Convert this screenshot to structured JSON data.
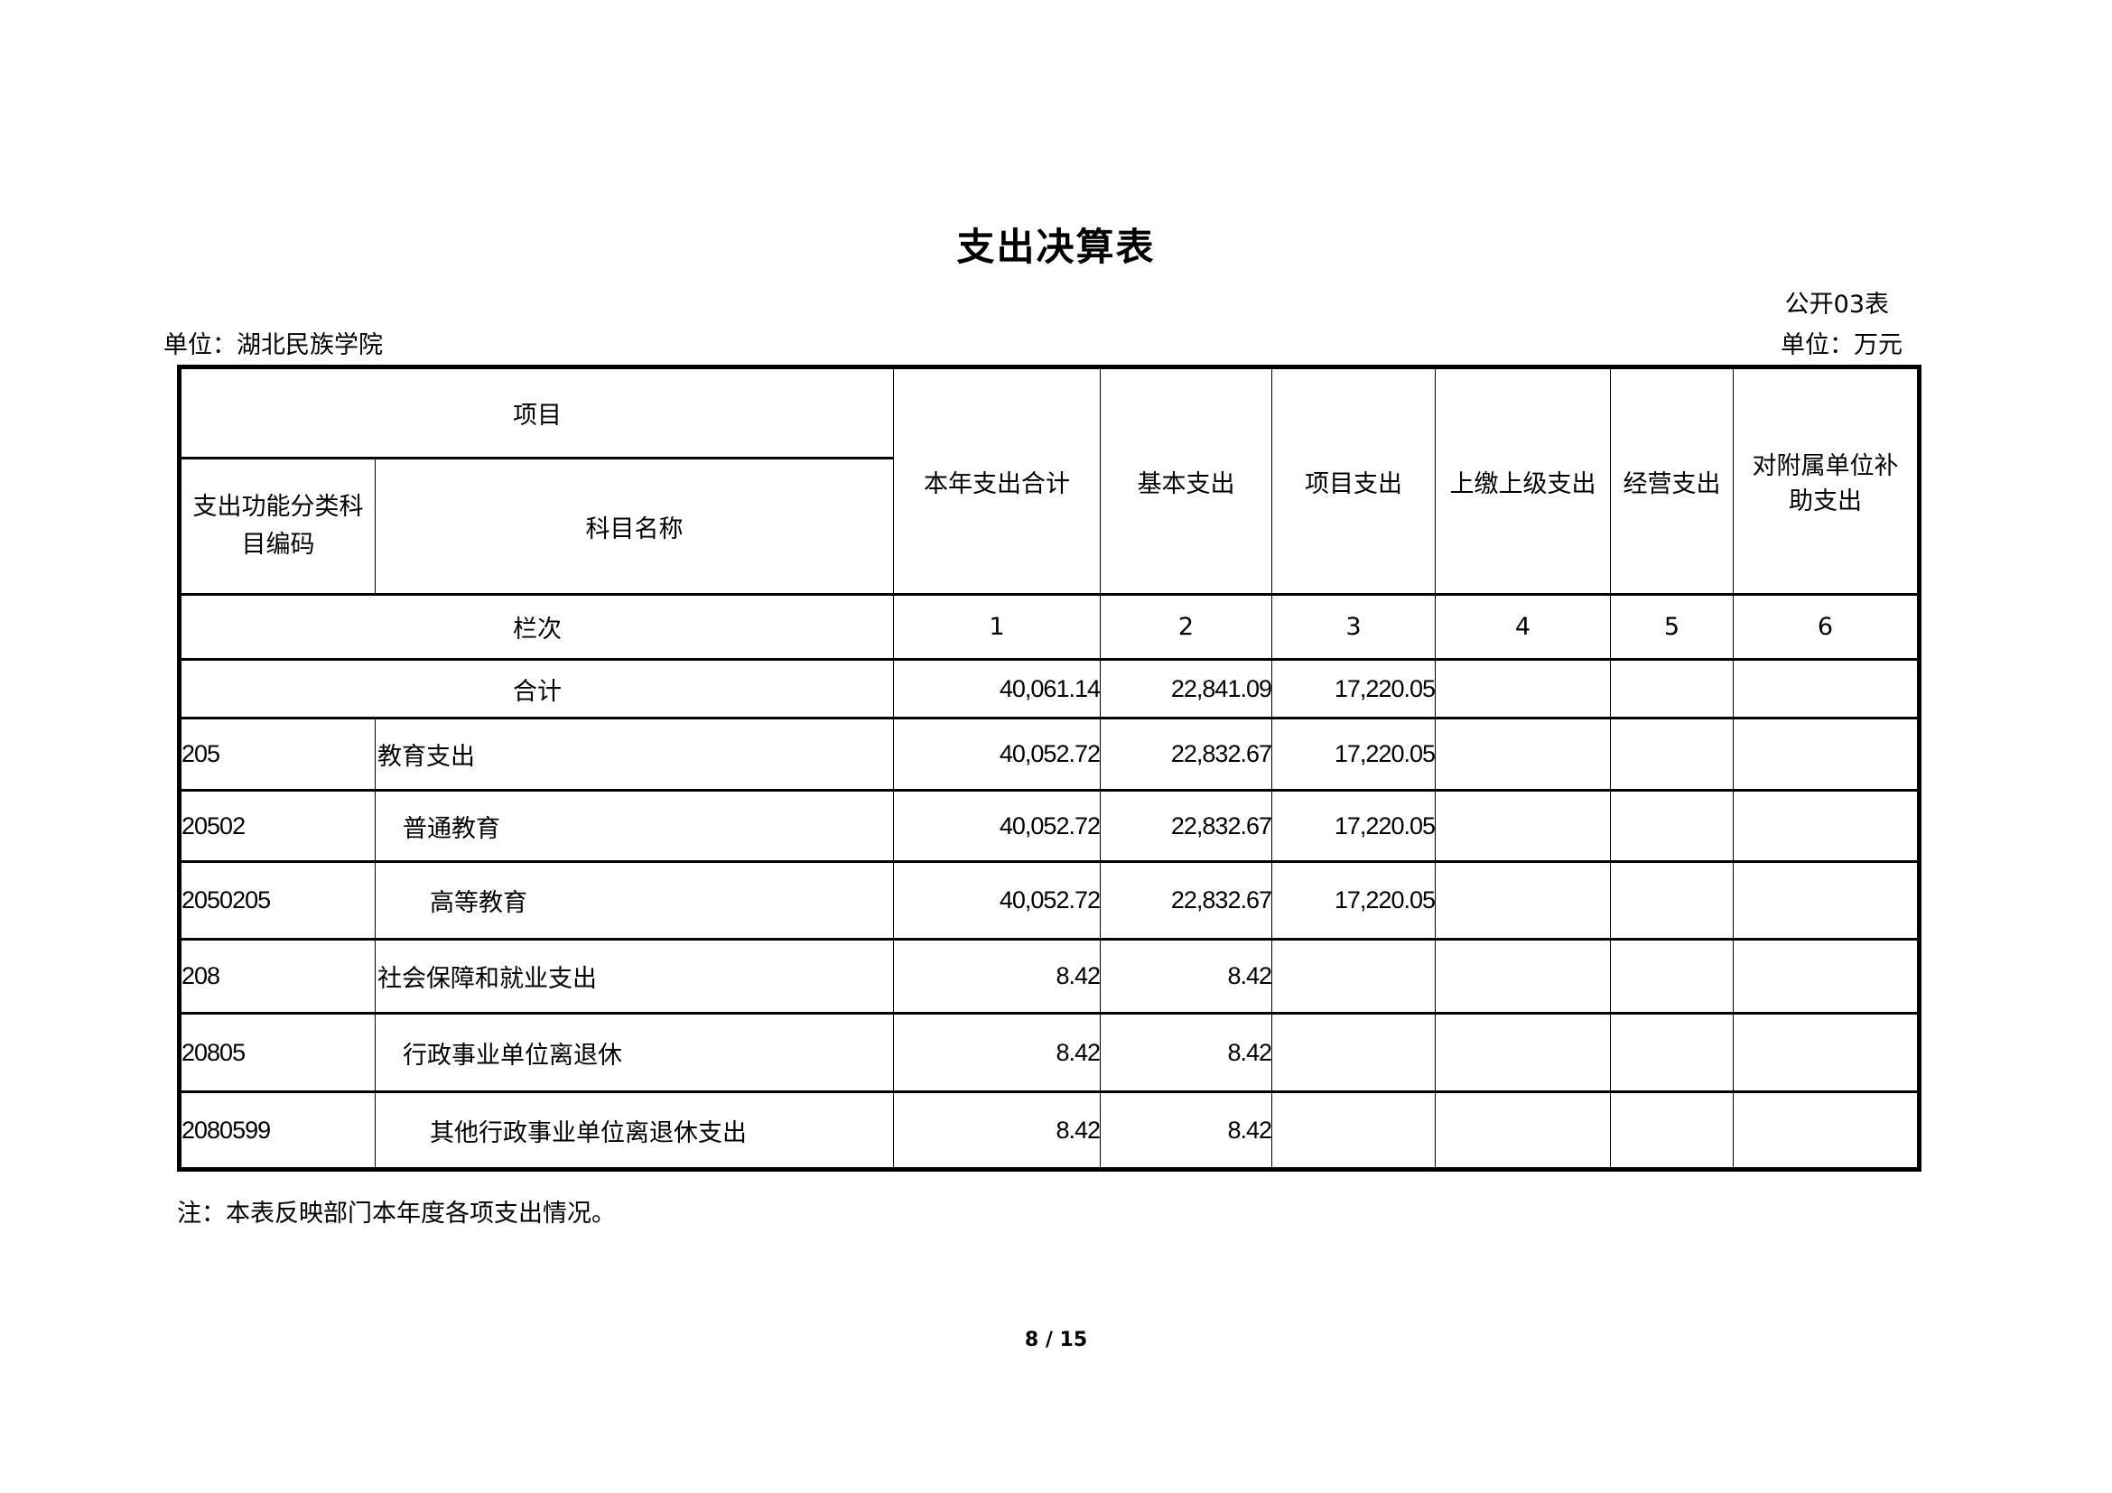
{
  "title": "支出决算表",
  "form_no": "公开03表",
  "unit_org": "单位：湖北民族学院",
  "unit_currency": "单位：万元",
  "header": {
    "item": "项目",
    "code": "支出功能分类科目编码",
    "name": "科目名称",
    "cols": [
      "本年支出合计",
      "基本支出",
      "项目支出",
      "上缴上级支出",
      "经营支出",
      "对附属单位补助支出"
    ],
    "row_label": "栏次",
    "col_numbers": [
      "1",
      "2",
      "3",
      "4",
      "5",
      "6"
    ]
  },
  "total": {
    "label": "合计",
    "values": [
      "40,061.14",
      "22,841.09",
      "17,220.05",
      "",
      "",
      ""
    ]
  },
  "rows": [
    {
      "code": "205",
      "name": "教育支出",
      "level": 1,
      "values": [
        "40,052.72",
        "22,832.67",
        "17,220.05",
        "",
        "",
        ""
      ]
    },
    {
      "code": "20502",
      "name": "普通教育",
      "level": 2,
      "values": [
        "40,052.72",
        "22,832.67",
        "17,220.05",
        "",
        "",
        ""
      ]
    },
    {
      "code": "2050205",
      "name": "高等教育",
      "level": 3,
      "values": [
        "40,052.72",
        "22,832.67",
        "17,220.05",
        "",
        "",
        ""
      ]
    },
    {
      "code": "208",
      "name": "社会保障和就业支出",
      "level": 1,
      "values": [
        "8.42",
        "8.42",
        "",
        "",
        "",
        ""
      ]
    },
    {
      "code": "20805",
      "name": "行政事业单位离退休",
      "level": 2,
      "values": [
        "8.42",
        "8.42",
        "",
        "",
        "",
        ""
      ]
    },
    {
      "code": "2080599",
      "name": "其他行政事业单位离退休支出",
      "level": 3,
      "values": [
        "8.42",
        "8.42",
        "",
        "",
        "",
        ""
      ]
    }
  ],
  "note": "注：本表反映部门本年度各项支出情况。",
  "page": "8 / 15"
}
